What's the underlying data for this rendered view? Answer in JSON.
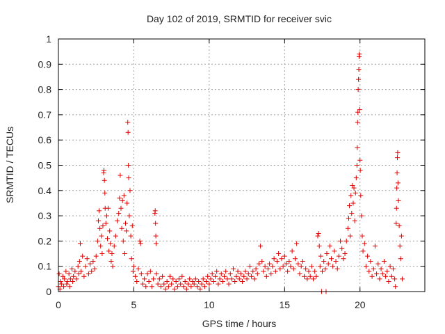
{
  "chart_data": {
    "type": "scatter",
    "title": "Day 102 of 2019, SRMTID for receiver svic",
    "xlabel": "GPS time / hours",
    "ylabel": "SRMTID / TECUs",
    "xlim": [
      0,
      24.3
    ],
    "ylim": [
      0,
      1
    ],
    "xticks": [
      0,
      5,
      10,
      15,
      20
    ],
    "xtick_labels": [
      "0",
      "5",
      "10",
      "15",
      "20"
    ],
    "yticks": [
      0,
      0.1,
      0.2,
      0.3,
      0.4,
      0.5,
      0.6,
      0.7,
      0.8,
      0.9,
      1
    ],
    "ytick_labels": [
      "0",
      "0.1",
      "0.2",
      "0.3",
      "0.4",
      "0.5",
      "0.6",
      "0.7",
      "0.8",
      "0.9",
      "1"
    ],
    "grid": true,
    "marker": "plus",
    "series": [
      {
        "name": "SRMTID",
        "color": "#e00000",
        "points": [
          [
            0.0,
            0.02
          ],
          [
            0.05,
            0.07
          ],
          [
            0.1,
            0.01
          ],
          [
            0.15,
            0.04
          ],
          [
            0.2,
            0.03
          ],
          [
            0.3,
            0.06
          ],
          [
            0.35,
            0.02
          ],
          [
            0.4,
            0.05
          ],
          [
            0.5,
            0.08
          ],
          [
            0.55,
            0.03
          ],
          [
            0.6,
            0.04
          ],
          [
            0.7,
            0.07
          ],
          [
            0.75,
            0.02
          ],
          [
            0.8,
            0.05
          ],
          [
            0.9,
            0.09
          ],
          [
            0.95,
            0.04
          ],
          [
            1.0,
            0.06
          ],
          [
            1.1,
            0.08
          ],
          [
            1.2,
            0.05
          ],
          [
            1.3,
            0.1
          ],
          [
            1.35,
            0.07
          ],
          [
            1.4,
            0.12
          ],
          [
            1.45,
            0.19
          ],
          [
            1.5,
            0.08
          ],
          [
            1.6,
            0.14
          ],
          [
            1.7,
            0.06
          ],
          [
            1.8,
            0.1
          ],
          [
            1.9,
            0.13
          ],
          [
            2.0,
            0.07
          ],
          [
            2.1,
            0.11
          ],
          [
            2.2,
            0.08
          ],
          [
            2.3,
            0.12
          ],
          [
            2.4,
            0.09
          ],
          [
            2.5,
            0.14
          ],
          [
            2.6,
            0.2
          ],
          [
            2.65,
            0.28
          ],
          [
            2.7,
            0.32
          ],
          [
            2.75,
            0.25
          ],
          [
            2.8,
            0.18
          ],
          [
            2.85,
            0.22
          ],
          [
            2.9,
            0.15
          ],
          [
            2.95,
            0.26
          ],
          [
            3.0,
            0.47
          ],
          [
            3.02,
            0.48
          ],
          [
            3.05,
            0.44
          ],
          [
            3.08,
            0.39
          ],
          [
            3.1,
            0.33
          ],
          [
            3.15,
            0.27
          ],
          [
            3.2,
            0.3
          ],
          [
            3.25,
            0.21
          ],
          [
            3.3,
            0.33
          ],
          [
            3.35,
            0.16
          ],
          [
            3.4,
            0.24
          ],
          [
            3.45,
            0.19
          ],
          [
            3.5,
            0.12
          ],
          [
            3.55,
            0.15
          ],
          [
            3.6,
            0.1
          ],
          [
            3.7,
            0.18
          ],
          [
            3.8,
            0.22
          ],
          [
            3.9,
            0.28
          ],
          [
            4.0,
            0.31
          ],
          [
            4.05,
            0.37
          ],
          [
            4.1,
            0.46
          ],
          [
            4.15,
            0.33
          ],
          [
            4.2,
            0.25
          ],
          [
            4.25,
            0.36
          ],
          [
            4.3,
            0.2
          ],
          [
            4.35,
            0.38
          ],
          [
            4.4,
            0.15
          ],
          [
            4.45,
            0.27
          ],
          [
            4.5,
            0.24
          ],
          [
            4.55,
            0.35
          ],
          [
            4.6,
            0.67
          ],
          [
            4.62,
            0.63
          ],
          [
            4.64,
            0.5
          ],
          [
            4.66,
            0.45
          ],
          [
            4.7,
            0.3
          ],
          [
            4.75,
            0.4
          ],
          [
            4.8,
            0.22
          ],
          [
            4.85,
            0.13
          ],
          [
            4.9,
            0.26
          ],
          [
            4.95,
            0.08
          ],
          [
            5.0,
            0.1
          ],
          [
            5.1,
            0.06
          ],
          [
            5.2,
            0.04
          ],
          [
            5.3,
            0.09
          ],
          [
            5.4,
            0.2
          ],
          [
            5.45,
            0.19
          ],
          [
            5.5,
            0.07
          ],
          [
            5.6,
            0.03
          ],
          [
            5.7,
            0.05
          ],
          [
            5.8,
            0.02
          ],
          [
            5.9,
            0.07
          ],
          [
            6.0,
            0.04
          ],
          [
            6.1,
            0.08
          ],
          [
            6.2,
            0.02
          ],
          [
            6.3,
            0.05
          ],
          [
            6.4,
            0.31
          ],
          [
            6.42,
            0.32
          ],
          [
            6.44,
            0.27
          ],
          [
            6.46,
            0.22
          ],
          [
            6.48,
            0.19
          ],
          [
            6.5,
            0.07
          ],
          [
            6.6,
            0.03
          ],
          [
            6.7,
            0.05
          ],
          [
            6.8,
            0.02
          ],
          [
            6.9,
            0.06
          ],
          [
            7.0,
            0.03
          ],
          [
            7.1,
            0.01
          ],
          [
            7.2,
            0.04
          ],
          [
            7.3,
            0.02
          ],
          [
            7.4,
            0.06
          ],
          [
            7.5,
            0.03
          ],
          [
            7.6,
            0.05
          ],
          [
            7.7,
            0.01
          ],
          [
            7.8,
            0.04
          ],
          [
            7.9,
            0.02
          ],
          [
            8.0,
            0.05
          ],
          [
            8.1,
            0.03
          ],
          [
            8.2,
            0.06
          ],
          [
            8.3,
            0.02
          ],
          [
            8.4,
            0.04
          ],
          [
            8.5,
            0.01
          ],
          [
            8.6,
            0.03
          ],
          [
            8.7,
            0.05
          ],
          [
            8.8,
            0.02
          ],
          [
            8.9,
            0.04
          ],
          [
            9.0,
            0.03
          ],
          [
            9.1,
            0.05
          ],
          [
            9.2,
            0.02
          ],
          [
            9.3,
            0.04
          ],
          [
            9.4,
            0.01
          ],
          [
            9.5,
            0.03
          ],
          [
            9.6,
            0.05
          ],
          [
            9.7,
            0.02
          ],
          [
            9.8,
            0.04
          ],
          [
            9.9,
            0.06
          ],
          [
            10.0,
            0.03
          ],
          [
            10.1,
            0.05
          ],
          [
            10.2,
            0.07
          ],
          [
            10.3,
            0.04
          ],
          [
            10.4,
            0.06
          ],
          [
            10.5,
            0.08
          ],
          [
            10.6,
            0.03
          ],
          [
            10.7,
            0.05
          ],
          [
            10.8,
            0.07
          ],
          [
            10.9,
            0.04
          ],
          [
            11.0,
            0.06
          ],
          [
            11.1,
            0.08
          ],
          [
            11.2,
            0.05
          ],
          [
            11.3,
            0.03
          ],
          [
            11.4,
            0.07
          ],
          [
            11.5,
            0.05
          ],
          [
            11.6,
            0.09
          ],
          [
            11.7,
            0.04
          ],
          [
            11.8,
            0.06
          ],
          [
            11.9,
            0.08
          ],
          [
            12.0,
            0.05
          ],
          [
            12.1,
            0.07
          ],
          [
            12.2,
            0.04
          ],
          [
            12.3,
            0.06
          ],
          [
            12.4,
            0.08
          ],
          [
            12.5,
            0.05
          ],
          [
            12.6,
            0.07
          ],
          [
            12.7,
            0.1
          ],
          [
            12.8,
            0.06
          ],
          [
            12.9,
            0.08
          ],
          [
            13.0,
            0.05
          ],
          [
            13.1,
            0.09
          ],
          [
            13.2,
            0.07
          ],
          [
            13.3,
            0.11
          ],
          [
            13.4,
            0.18
          ],
          [
            13.5,
            0.12
          ],
          [
            13.6,
            0.08
          ],
          [
            13.7,
            0.1
          ],
          [
            13.8,
            0.06
          ],
          [
            13.9,
            0.09
          ],
          [
            14.0,
            0.11
          ],
          [
            14.1,
            0.07
          ],
          [
            14.2,
            0.1
          ],
          [
            14.3,
            0.13
          ],
          [
            14.4,
            0.08
          ],
          [
            14.5,
            0.12
          ],
          [
            14.6,
            0.15
          ],
          [
            14.7,
            0.09
          ],
          [
            14.8,
            0.13
          ],
          [
            14.9,
            0.1
          ],
          [
            15.0,
            0.14
          ],
          [
            15.1,
            0.11
          ],
          [
            15.2,
            0.08
          ],
          [
            15.3,
            0.12
          ],
          [
            15.4,
            0.1
          ],
          [
            15.5,
            0.16
          ],
          [
            15.6,
            0.09
          ],
          [
            15.7,
            0.13
          ],
          [
            15.8,
            0.19
          ],
          [
            15.9,
            0.11
          ],
          [
            16.0,
            0.07
          ],
          [
            16.1,
            0.1
          ],
          [
            16.2,
            0.12
          ],
          [
            16.3,
            0.06
          ],
          [
            16.4,
            0.09
          ],
          [
            16.5,
            0.05
          ],
          [
            16.6,
            0.08
          ],
          [
            16.7,
            0.06
          ],
          [
            16.8,
            0.1
          ],
          [
            16.9,
            0.05
          ],
          [
            17.0,
            0.08
          ],
          [
            17.1,
            0.06
          ],
          [
            17.2,
            0.22
          ],
          [
            17.25,
            0.23
          ],
          [
            17.3,
            0.18
          ],
          [
            17.35,
            0.1
          ],
          [
            17.4,
            0.14
          ],
          [
            17.45,
            0.0
          ],
          [
            17.5,
            0.08
          ],
          [
            17.6,
            0.12
          ],
          [
            17.7,
            0.09
          ],
          [
            17.75,
            0.0
          ],
          [
            17.8,
            0.15
          ],
          [
            17.9,
            0.11
          ],
          [
            18.0,
            0.18
          ],
          [
            18.1,
            0.13
          ],
          [
            18.2,
            0.1
          ],
          [
            18.3,
            0.16
          ],
          [
            18.4,
            0.12
          ],
          [
            18.5,
            0.09
          ],
          [
            18.6,
            0.14
          ],
          [
            18.7,
            0.2
          ],
          [
            18.8,
            0.17
          ],
          [
            18.9,
            0.13
          ],
          [
            19.0,
            0.15
          ],
          [
            19.1,
            0.2
          ],
          [
            19.2,
            0.25
          ],
          [
            19.25,
            0.29
          ],
          [
            19.3,
            0.34
          ],
          [
            19.35,
            0.22
          ],
          [
            19.4,
            0.38
          ],
          [
            19.45,
            0.31
          ],
          [
            19.5,
            0.42
          ],
          [
            19.55,
            0.35
          ],
          [
            19.6,
            0.41
          ],
          [
            19.65,
            0.28
          ],
          [
            19.7,
            0.39
          ],
          [
            19.75,
            0.45
          ],
          [
            19.8,
            0.5
          ],
          [
            19.82,
            0.57
          ],
          [
            19.84,
            0.67
          ],
          [
            19.86,
            0.71
          ],
          [
            19.88,
            0.8
          ],
          [
            19.9,
            0.84
          ],
          [
            19.92,
            0.88
          ],
          [
            19.94,
            0.93
          ],
          [
            19.96,
            0.94
          ],
          [
            19.98,
            0.72
          ],
          [
            20.0,
            0.52
          ],
          [
            20.02,
            0.48
          ],
          [
            20.05,
            0.38
          ],
          [
            20.1,
            0.3
          ],
          [
            20.15,
            0.22
          ],
          [
            20.2,
            0.16
          ],
          [
            20.3,
            0.19
          ],
          [
            20.4,
            0.1
          ],
          [
            20.5,
            0.14
          ],
          [
            20.6,
            0.08
          ],
          [
            20.7,
            0.12
          ],
          [
            20.8,
            0.06
          ],
          [
            20.9,
            0.09
          ],
          [
            21.0,
            0.18
          ],
          [
            21.1,
            0.07
          ],
          [
            21.2,
            0.11
          ],
          [
            21.3,
            0.05
          ],
          [
            21.4,
            0.09
          ],
          [
            21.5,
            0.07
          ],
          [
            21.6,
            0.12
          ],
          [
            21.7,
            0.06
          ],
          [
            21.8,
            0.08
          ],
          [
            21.9,
            0.04
          ],
          [
            22.0,
            0.1
          ],
          [
            22.1,
            0.06
          ],
          [
            22.2,
            0.09
          ],
          [
            22.3,
            0.05
          ],
          [
            22.35,
            0.02
          ],
          [
            22.4,
            0.27
          ],
          [
            22.42,
            0.33
          ],
          [
            22.44,
            0.41
          ],
          [
            22.46,
            0.47
          ],
          [
            22.48,
            0.53
          ],
          [
            22.5,
            0.55
          ],
          [
            22.52,
            0.43
          ],
          [
            22.55,
            0.36
          ],
          [
            22.6,
            0.26
          ],
          [
            22.65,
            0.18
          ],
          [
            22.7,
            0.13
          ],
          [
            22.75,
            0.22
          ],
          [
            22.8,
            0.05
          ]
        ]
      }
    ]
  }
}
